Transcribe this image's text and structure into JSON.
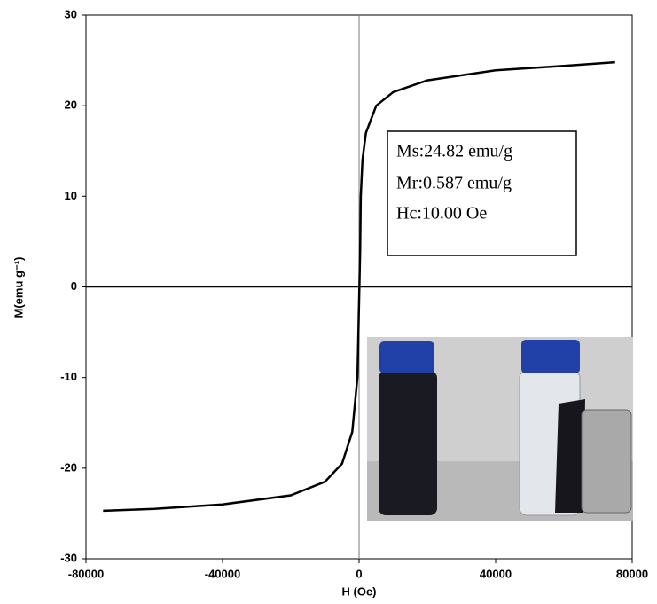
{
  "chart_data": {
    "type": "line",
    "xlabel": "H (Oe)",
    "ylabel": "M(emu g⁻¹)",
    "x": [
      -75000,
      -60000,
      -40000,
      -20000,
      -10000,
      -5000,
      -2000,
      -500,
      -300,
      300,
      500,
      1000,
      2000,
      5000,
      10000,
      20000,
      40000,
      60000,
      75000
    ],
    "series": [
      {
        "color": "#000000",
        "values": [
          -24.7,
          -24.5,
          -24.0,
          -23.0,
          -21.5,
          -19.5,
          -16,
          -10,
          -7,
          4,
          10,
          14,
          17,
          20,
          21.5,
          22.8,
          23.9,
          24.4,
          24.8
        ]
      }
    ],
    "xlim": [
      -80000,
      80000
    ],
    "xticks": [
      -80000,
      -40000,
      0,
      40000,
      80000
    ],
    "ylim": [
      -30,
      30
    ],
    "yticks": [
      -30,
      -20,
      -10,
      0,
      10,
      20,
      30
    ],
    "annotations": [
      "Ms:24.82 emu/g",
      "Mr:0.587 emu/g",
      "Hc:10.00 Oe"
    ]
  }
}
